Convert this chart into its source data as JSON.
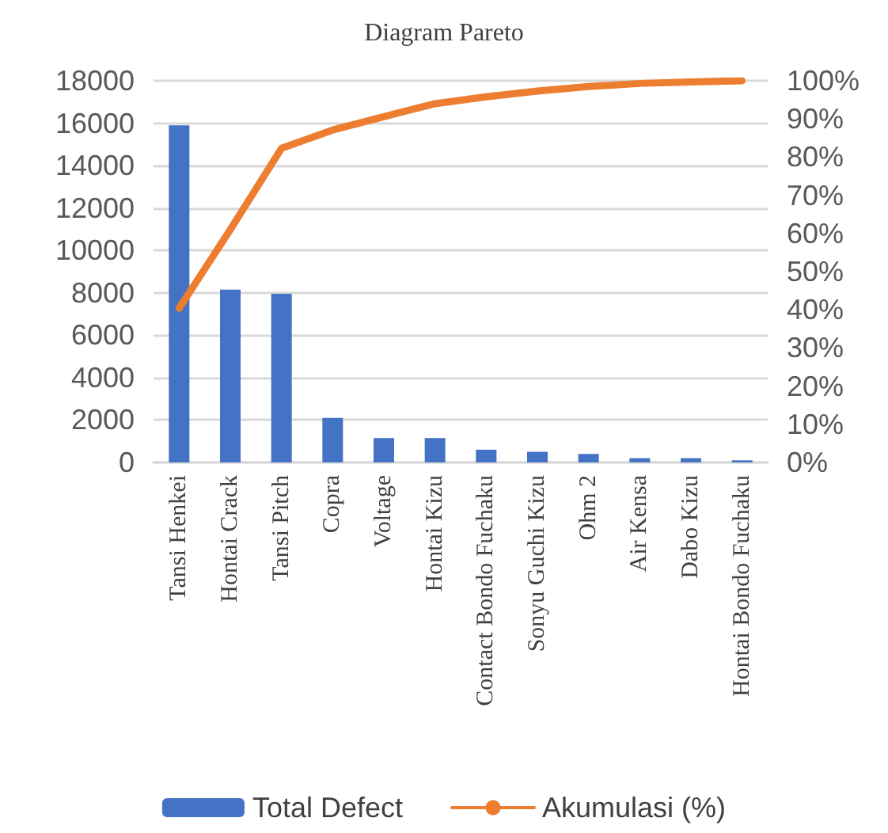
{
  "chart_data": {
    "type": "bar",
    "title": "Diagram Pareto",
    "categories": [
      "Tansi Henkei",
      "Hontai Crack",
      "Tansi Pitch",
      "Copra",
      "Voltage",
      "Hontai Kizu",
      "Contact Bondo Fuchaku",
      "Sonyu Guchi Kizu",
      "Ohm 2",
      "Air Kensa",
      "Dabo Kizu",
      "Hontai Bondo Fuchaku"
    ],
    "series": [
      {
        "name": "Total Defect",
        "color": "#4472c4",
        "values": [
          15900,
          8150,
          7950,
          2100,
          1150,
          1150,
          600,
          500,
          400,
          200,
          200,
          100
        ]
      },
      {
        "name": "Akumulasi (%)",
        "type": "line",
        "axis": "y2",
        "color": "#ed7d31",
        "values": [
          40.4,
          61,
          82.3,
          87.1,
          90.6,
          94,
          95.8,
          97.3,
          98.5,
          99.3,
          99.7,
          100
        ]
      }
    ],
    "ylim": [
      0,
      18000
    ],
    "yticks": [
      0,
      2000,
      4000,
      6000,
      8000,
      10000,
      12000,
      14000,
      16000,
      18000
    ],
    "y2lim": [
      0,
      100
    ],
    "y2ticks": [
      {
        "value": 0,
        "label": "0%"
      },
      {
        "value": 10,
        "label": "10%"
      },
      {
        "value": 20,
        "label": "20%"
      },
      {
        "value": 30,
        "label": "30%"
      },
      {
        "value": 40,
        "label": "40%"
      },
      {
        "value": 50,
        "label": "50%"
      },
      {
        "value": 60,
        "label": "60%"
      },
      {
        "value": 70,
        "label": "70%"
      },
      {
        "value": 80,
        "label": "80%"
      },
      {
        "value": 90,
        "label": "90%"
      },
      {
        "value": 100,
        "label": "100%"
      }
    ],
    "grid": "y",
    "legend": "bottom",
    "marker": "none"
  }
}
